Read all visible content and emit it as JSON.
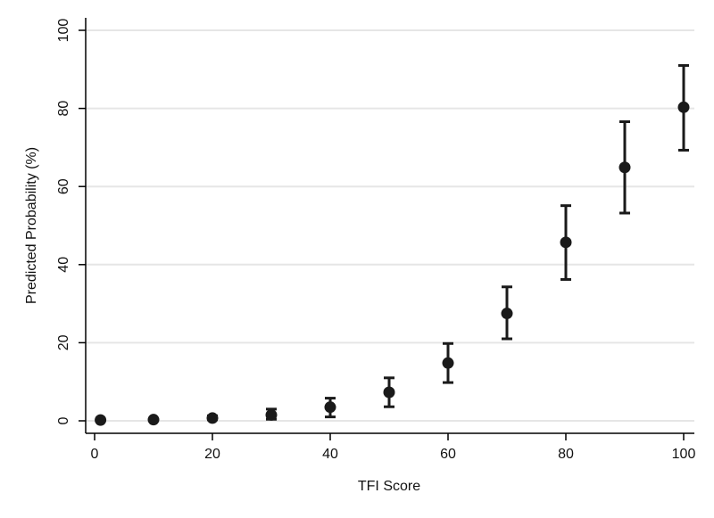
{
  "chart_data": {
    "type": "scatter",
    "xlabel": "TFI Score",
    "ylabel": "Predicted Probability (%)",
    "xlim": [
      0,
      100
    ],
    "ylim": [
      0,
      100
    ],
    "xticks": [
      0,
      20,
      40,
      60,
      80,
      100
    ],
    "yticks": [
      0,
      20,
      40,
      60,
      80,
      100
    ],
    "grid": "horizontal",
    "error_bars": true,
    "marker_color": "#1a1a1a",
    "grid_color": "#e6e6e6",
    "points": [
      {
        "x": 1,
        "y": 0.2,
        "lo": 0.0,
        "hi": 0.5
      },
      {
        "x": 10,
        "y": 0.3,
        "lo": 0.1,
        "hi": 0.6
      },
      {
        "x": 20,
        "y": 0.7,
        "lo": 0.3,
        "hi": 1.3
      },
      {
        "x": 30,
        "y": 1.5,
        "lo": 0.4,
        "hi": 3.0
      },
      {
        "x": 40,
        "y": 3.5,
        "lo": 1.0,
        "hi": 5.8
      },
      {
        "x": 50,
        "y": 7.3,
        "lo": 3.6,
        "hi": 11.0
      },
      {
        "x": 60,
        "y": 14.8,
        "lo": 9.8,
        "hi": 19.8
      },
      {
        "x": 70,
        "y": 27.5,
        "lo": 21.0,
        "hi": 34.3
      },
      {
        "x": 80,
        "y": 45.7,
        "lo": 36.2,
        "hi": 55.1
      },
      {
        "x": 90,
        "y": 64.9,
        "lo": 53.2,
        "hi": 76.6
      },
      {
        "x": 100,
        "y": 80.3,
        "lo": 69.3,
        "hi": 91.0
      }
    ]
  }
}
